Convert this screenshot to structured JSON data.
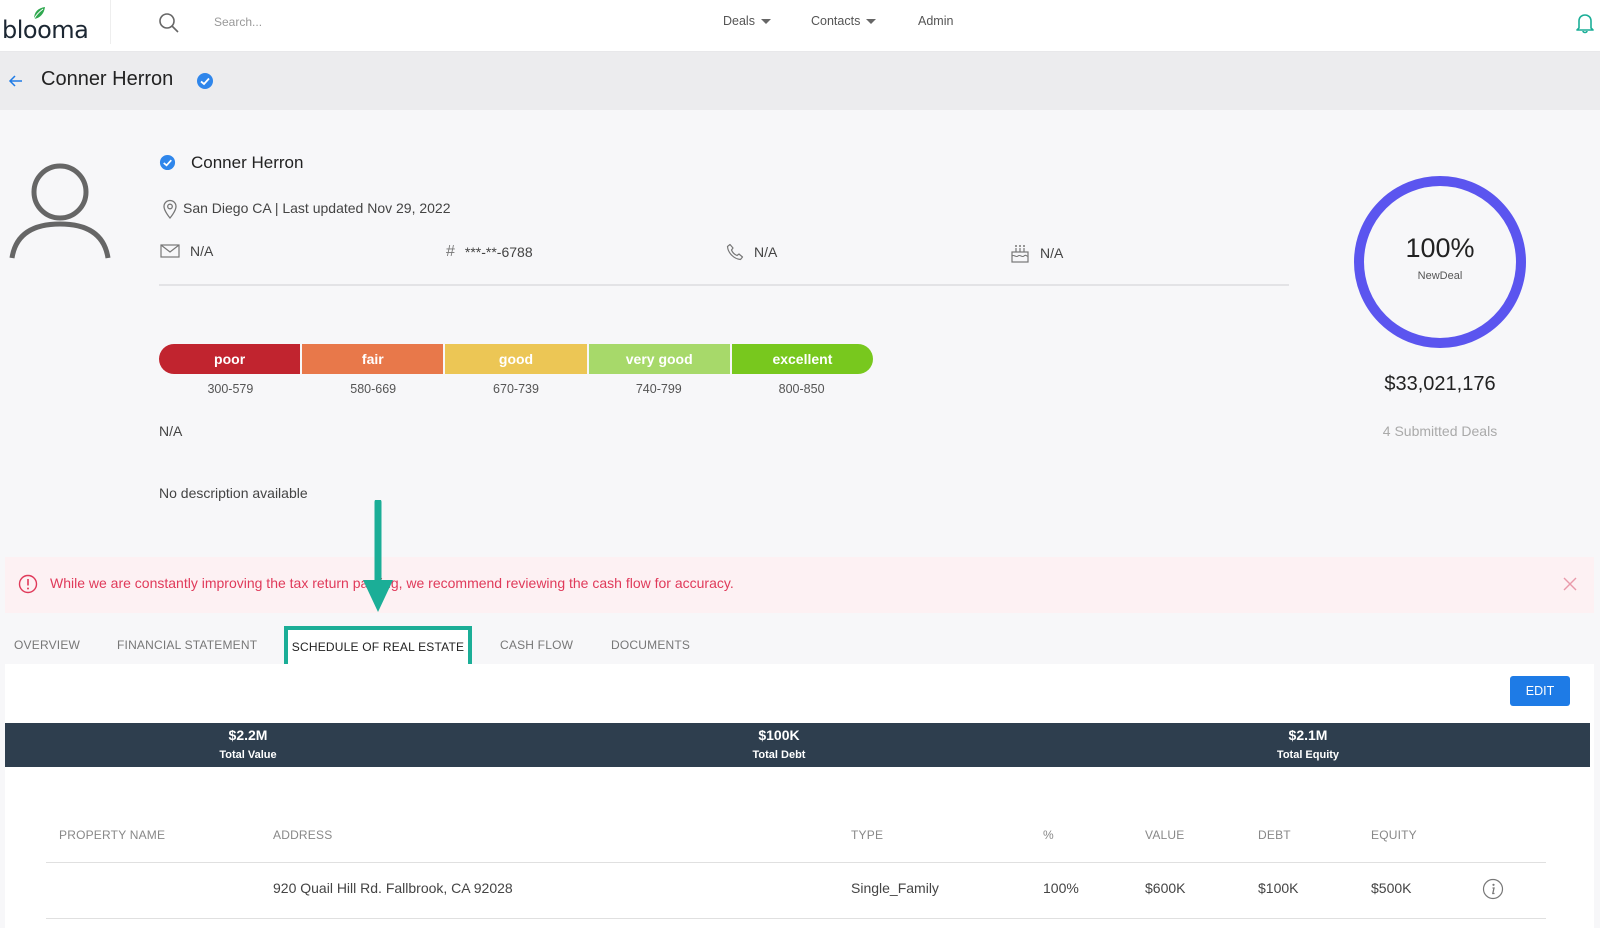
{
  "nav": {
    "logo_text": "bloomа",
    "search_placeholder": "Search...",
    "items": [
      {
        "label": "Deals",
        "has_caret": true
      },
      {
        "label": "Contacts",
        "has_caret": true
      },
      {
        "label": "Admin",
        "has_caret": false
      }
    ],
    "icons": [
      "search-icon",
      "bell-icon"
    ]
  },
  "header": {
    "title": "Conner Herron",
    "verified": true
  },
  "profile": {
    "name": "Conner Herron",
    "location": "San Diego CA | Last updated Nov 29, 2022",
    "email": "N/A",
    "id_number": "***-**-6788",
    "phone": "N/A",
    "birthday": "N/A"
  },
  "credit": {
    "segments": [
      {
        "label": "poor",
        "range": "300-579",
        "color": "#c1242f"
      },
      {
        "label": "fair",
        "range": "580-669",
        "color": "#e8784a"
      },
      {
        "label": "good",
        "range": "670-739",
        "color": "#ecc655"
      },
      {
        "label": "very good",
        "range": "740-799",
        "color": "#a7d96a"
      },
      {
        "label": "excellent",
        "range": "800-850",
        "color": "#78c81e"
      }
    ],
    "value": "N/A"
  },
  "description": "No description available",
  "deal_summary": {
    "percent": "100%",
    "percent_value": 1.0,
    "stage": "NewDeal",
    "total": "$33,021,176",
    "submitted": "4 Submitted Deals",
    "ring_color": "#5b55ef"
  },
  "alert": {
    "text": "While we are constantly improving the tax return parsing, we recommend reviewing the cash flow for accuracy.",
    "color": "#e03a5a"
  },
  "tabs": [
    {
      "label": "OVERVIEW",
      "active": false
    },
    {
      "label": "FINANCIAL STATEMENT",
      "active": false
    },
    {
      "label": "SCHEDULE OF REAL ESTATE",
      "active": true
    },
    {
      "label": "CASH FLOW",
      "active": false
    },
    {
      "label": "DOCUMENTS",
      "active": false
    }
  ],
  "schedule": {
    "edit_label": "EDIT",
    "totals": [
      {
        "value": "$2.2M",
        "label": "Total Value"
      },
      {
        "value": "$100K",
        "label": "Total Debt"
      },
      {
        "value": "$2.1M",
        "label": "Total Equity"
      }
    ],
    "columns": [
      "PROPERTY NAME",
      "ADDRESS",
      "TYPE",
      "%",
      "VALUE",
      "DEBT",
      "EQUITY"
    ],
    "rows": [
      {
        "property_name": "",
        "address": "920 Quail Hill Rd. Fallbrook, CA 92028",
        "type": "Single_Family",
        "percent": "100%",
        "value": "$600K",
        "debt": "$100K",
        "equity": "$500K"
      }
    ]
  },
  "colors": {
    "accent_blue": "#1e7be6",
    "annotation_teal": "#1bae97",
    "summary_bar": "#2e3e4e"
  }
}
